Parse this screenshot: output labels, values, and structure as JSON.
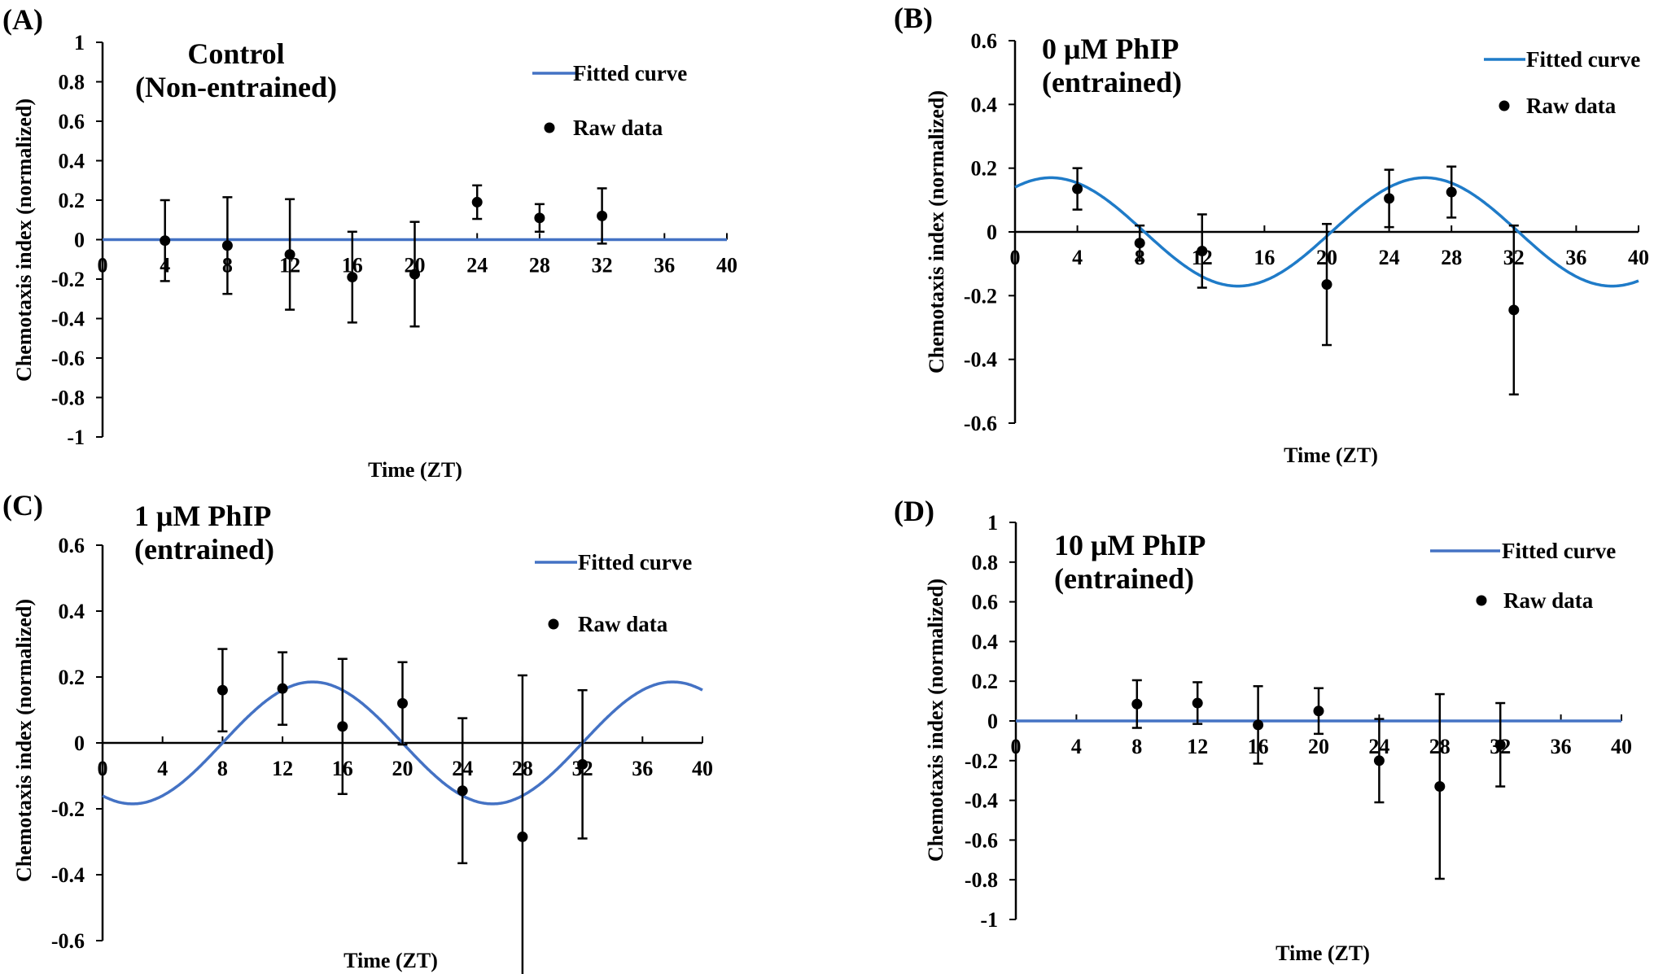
{
  "chart_data": [
    {
      "panel": "(A)",
      "type": "scatter",
      "title": [
        "Control",
        "(Non-entrained)"
      ],
      "xlabel": "Time (ZT)",
      "ylabel": "Chemotaxis index (normalized)",
      "xlim": [
        0,
        40
      ],
      "ylim": [
        -1,
        1
      ],
      "xticks": [
        "0",
        "4",
        "8",
        "12",
        "16",
        "20",
        "24",
        "28",
        "32",
        "36",
        "40"
      ],
      "yticks": [
        "1",
        "0.8",
        "0.6",
        "0.4",
        "0.2",
        "0",
        "-0.2",
        "-0.4",
        "-0.6",
        "-0.8",
        "-1"
      ],
      "legend": {
        "fit": "Fitted curve",
        "raw": "Raw data",
        "position": "top-right"
      },
      "series": [
        {
          "name": "Raw data",
          "x": [
            4,
            8,
            12,
            16,
            20,
            24,
            28,
            32
          ],
          "y": [
            -0.005,
            -0.03,
            -0.075,
            -0.19,
            -0.175,
            0.19,
            0.11,
            0.12
          ],
          "err": [
            0.205,
            0.245,
            0.28,
            0.23,
            0.265,
            0.085,
            0.07,
            0.14
          ]
        },
        {
          "name": "Fitted curve",
          "model": "sine",
          "amplitude": 0,
          "offset": 0,
          "period": 24,
          "peak": 0,
          "color": "#4472C4"
        }
      ]
    },
    {
      "panel": "(B)",
      "type": "scatter",
      "title": [
        "0 μM PhIP",
        "(entrained)"
      ],
      "xlabel": "Time (ZT)",
      "ylabel": "Chemotaxis index (normalized)",
      "xlim": [
        0,
        40
      ],
      "ylim": [
        -0.6,
        0.6
      ],
      "xticks": [
        "0",
        "4",
        "8",
        "12",
        "16",
        "20",
        "24",
        "28",
        "32",
        "36",
        "40"
      ],
      "yticks": [
        "0.6",
        "0.4",
        "0.2",
        "0",
        "-0.2",
        "-0.4",
        "-0.6"
      ],
      "legend": {
        "fit": "Fitted curve",
        "raw": "Raw data",
        "position": "top-right"
      },
      "series": [
        {
          "name": "Raw data",
          "x": [
            4,
            8,
            12,
            20,
            24,
            28,
            32
          ],
          "y": [
            0.135,
            -0.035,
            -0.06,
            -0.165,
            0.105,
            0.125,
            -0.245
          ],
          "err": [
            0.065,
            0.055,
            0.115,
            0.19,
            0.09,
            0.08,
            0.265
          ]
        },
        {
          "name": "Fitted curve",
          "model": "sine",
          "amplitude": 0.17,
          "offset": 0,
          "period": 24,
          "peak": 2.3,
          "color": "#1F7BC8"
        }
      ]
    },
    {
      "panel": "(C)",
      "type": "scatter",
      "title": [
        "1  μM PhIP",
        "(entrained)"
      ],
      "xlabel": "Time (ZT)",
      "ylabel": "Chemotaxis index (normalized)",
      "xlim": [
        0,
        40
      ],
      "ylim": [
        -0.6,
        0.6
      ],
      "xticks": [
        "0",
        "4",
        "8",
        "12",
        "16",
        "20",
        "24",
        "28",
        "32",
        "36",
        "40"
      ],
      "yticks": [
        "0.6",
        "0.4",
        "0.2",
        "0",
        "-0.2",
        "-0.4",
        "-0.6"
      ],
      "legend": {
        "fit": "Fitted curve",
        "raw": "Raw data",
        "position": "top-right"
      },
      "series": [
        {
          "name": "Raw data",
          "x": [
            8,
            12,
            16,
            20,
            24,
            28,
            32
          ],
          "y": [
            0.16,
            0.165,
            0.05,
            0.12,
            -0.145,
            -0.285,
            -0.065
          ],
          "err": [
            0.125,
            0.11,
            0.205,
            0.125,
            0.22,
            0.49,
            0.225
          ]
        },
        {
          "name": "Fitted curve",
          "model": "sine",
          "amplitude": 0.185,
          "offset": 0,
          "period": 24,
          "peak": 14,
          "color": "#4472C4"
        }
      ]
    },
    {
      "panel": "(D)",
      "type": "scatter",
      "title": [
        "10 μM PhIP",
        "(entrained)"
      ],
      "xlabel": "Time (ZT)",
      "ylabel": "Chemotaxis index (normalized)",
      "xlim": [
        0,
        40
      ],
      "ylim": [
        -1,
        1
      ],
      "xticks": [
        "0",
        "4",
        "8",
        "12",
        "16",
        "20",
        "24",
        "28",
        "32",
        "36",
        "40"
      ],
      "yticks": [
        "1",
        "0.8",
        "0.6",
        "0.4",
        "0.2",
        "0",
        "-0.2",
        "-0.4",
        "-0.6",
        "-0.8",
        "-1"
      ],
      "legend": {
        "fit": "Fitted curve",
        "raw": "Raw data",
        "position": "top-right"
      },
      "series": [
        {
          "name": "Raw data",
          "x": [
            8,
            12,
            16,
            20,
            24,
            28,
            32
          ],
          "y": [
            0.085,
            0.09,
            -0.02,
            0.05,
            -0.2,
            -0.33,
            -0.12
          ],
          "err": [
            0.12,
            0.105,
            0.195,
            0.115,
            0.21,
            0.465,
            0.21
          ]
        },
        {
          "name": "Fitted curve",
          "model": "sine",
          "amplitude": 0,
          "offset": 0,
          "period": 24,
          "peak": 0,
          "color": "#4472C4"
        }
      ]
    }
  ]
}
